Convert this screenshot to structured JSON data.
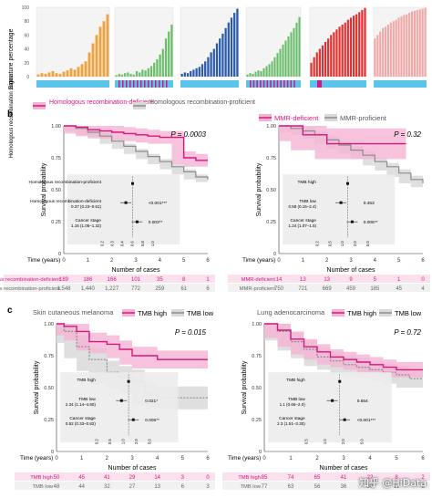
{
  "colors": {
    "pink": "#d6177f",
    "pink_band": "#f4b3d3",
    "gray": "#8c8c8c",
    "gray_band": "#d9d9d9",
    "cyan": "#5bc4e8",
    "bar_orange": "#f3a13a",
    "bar_green": "#6bbd6b",
    "bar_blue": "#2a5aa8",
    "bar_red": "#e0302f",
    "bar_pink": "#f2a5a5"
  },
  "panel_a": {
    "ylabel": "Signature percentage",
    "status_label": "Homologous recombination status",
    "ticks": [
      "100",
      "80",
      "60",
      "40",
      "20",
      "0"
    ]
  },
  "panel_b": {
    "label": "b",
    "left": {
      "legend": [
        "Homologous recombination-deficient",
        "Homologous recombination-proficient"
      ],
      "p_value": "P = 0.0003",
      "ylabel": "Survival probability",
      "xlabel": "Time (years)",
      "yticks": [
        "1.00",
        "0.75",
        "0.50",
        "0.25",
        "0"
      ],
      "xticks": [
        "0",
        "1",
        "2",
        "3",
        "4",
        "5",
        "6"
      ],
      "forest": [
        {
          "label": "Homologous recombination-proficient",
          "hr": "",
          "p": ""
        },
        {
          "label": "Homologous recombination-deficient",
          "hr": "0.37 (0.23–0.61)",
          "p": "<0.001***"
        },
        {
          "label": "Cancer stage",
          "hr": "1.16 (1.06–1.32)",
          "p": "0.003**"
        }
      ],
      "forest_ticks": [
        "0.2",
        "0.3",
        "0.4",
        "0.6",
        "0.8",
        "1.0"
      ],
      "cases_title": "Number of cases",
      "cases": [
        {
          "group": "Homologous recombination-deficient",
          "values": [
            "189",
            "186",
            "166",
            "101",
            "35",
            "8",
            "1"
          ]
        },
        {
          "group": "Homologous recombination-proficient",
          "values": [
            "1,548",
            "1,440",
            "1,227",
            "772",
            "259",
            "61",
            "6"
          ]
        }
      ]
    },
    "right": {
      "legend": [
        "MMR-deficient",
        "MMR-proficient"
      ],
      "p_value": "P = 0.32",
      "ylabel": "Survival probability",
      "xlabel": "Time (years)",
      "yticks": [
        "1.00",
        "0.75",
        "0.50",
        "0.25",
        "0"
      ],
      "xticks": [
        "0",
        "1",
        "2",
        "3",
        "4",
        "5",
        "6"
      ],
      "forest": [
        {
          "label": "TMB high",
          "hr": "",
          "p": ""
        },
        {
          "label": "TMB low",
          "hr": "0.58 (0.15–2.4)",
          "p": "0.453"
        },
        {
          "label": "Cancer stage",
          "hr": "1.24 (1.07–1.5)",
          "p": "0.006**"
        }
      ],
      "forest_ticks": [
        "0.2",
        "0.5",
        "1.0",
        "2.0",
        "5.0"
      ],
      "cases_title": "Number of cases",
      "cases": [
        {
          "group": "MMR-deficient",
          "values": [
            "14",
            "13",
            "13",
            "9",
            "5",
            "1",
            "0"
          ]
        },
        {
          "group": "MMR-proficient",
          "values": [
            "750",
            "721",
            "669",
            "459",
            "185",
            "45",
            "4"
          ]
        }
      ]
    }
  },
  "panel_c": {
    "label": "c",
    "left": {
      "title": "Skin cutaneous melanoma",
      "legend": [
        "TMB high",
        "TMB low"
      ],
      "p_value": "P = 0.015",
      "ylabel": "Survival probability",
      "xlabel": "Time (years)",
      "yticks": [
        "1.00",
        "0.75",
        "0.50",
        "0.25",
        "0"
      ],
      "xticks": [
        "0",
        "1",
        "2",
        "3",
        "4",
        "5",
        "6"
      ],
      "forest": [
        {
          "label": "TMB high",
          "hr": "",
          "p": ""
        },
        {
          "label": "TMB low",
          "hr": "2.34 (1.14–4.80)",
          "p": "0.021*"
        },
        {
          "label": "Cancer stage",
          "hr": "0.52 (0.33–0.82)",
          "p": "0.005**"
        }
      ],
      "forest_ticks": [
        "0.2",
        "0.5",
        "1.0",
        "2.0",
        "5.0"
      ],
      "cases_title": "Number of cases",
      "cases": [
        {
          "group": "TMB high",
          "values": [
            "50",
            "45",
            "41",
            "29",
            "14",
            "3",
            "0"
          ]
        },
        {
          "group": "TMB low",
          "values": [
            "48",
            "44",
            "32",
            "27",
            "13",
            "6",
            "3"
          ]
        }
      ]
    },
    "right": {
      "title": "Lung adenocarcinoma",
      "legend": [
        "TMB high",
        "TMB low"
      ],
      "p_value": "P = 0.72",
      "ylabel": "Survival probability",
      "xlabel": "Time (years)",
      "yticks": [
        "1.00",
        "0.75",
        "0.50",
        "0.25",
        "0"
      ],
      "xticks": [
        "0",
        "1",
        "2",
        "3",
        "4",
        "5",
        "6"
      ],
      "forest": [
        {
          "label": "TMB high",
          "hr": "",
          "p": ""
        },
        {
          "label": "TMB low",
          "hr": "1.1 (0.66–2.0)",
          "p": "0.654"
        },
        {
          "label": "Cancer stage",
          "hr": "2.3 (1.51–3.30)",
          "p": "<0.001***"
        }
      ],
      "forest_ticks": [
        "0.5",
        "1.0",
        "2.0",
        "5.0"
      ],
      "cases_title": "Number of cases",
      "cases": [
        {
          "group": "TMB high",
          "values": [
            "85",
            "74",
            "65",
            "41",
            "22",
            "8",
            "2"
          ]
        },
        {
          "group": "TMB low",
          "values": [
            "77",
            "63",
            "56",
            "36",
            "30",
            "11",
            "2"
          ]
        }
      ]
    }
  },
  "watermark": "知乎 @HiData",
  "chart_data": [
    {
      "type": "bar",
      "title": "",
      "ylabel": "Signature percentage",
      "ylim": [
        0,
        100
      ],
      "groups": [
        {
          "color": "orange",
          "values": [
            3,
            5,
            4,
            6,
            8,
            5,
            4,
            7,
            9,
            12,
            10,
            14,
            18,
            22,
            35,
            48,
            60,
            72,
            80,
            90
          ]
        },
        {
          "color": "green",
          "values": [
            2,
            4,
            3,
            5,
            6,
            4,
            3,
            8,
            6,
            10,
            9,
            12,
            15,
            20,
            25,
            32,
            40,
            55,
            65,
            75
          ]
        },
        {
          "color": "blue",
          "values": [
            4,
            6,
            5,
            8,
            10,
            12,
            14,
            18,
            22,
            28,
            35,
            40,
            48,
            55,
            62,
            70,
            78,
            85,
            92,
            98
          ]
        },
        {
          "color": "green2",
          "values": [
            3,
            5,
            4,
            7,
            9,
            8,
            12,
            15,
            18,
            22,
            28,
            34,
            40,
            46,
            52,
            58,
            64,
            70,
            78,
            86
          ]
        },
        {
          "color": "red",
          "values": [
            20,
            28,
            35,
            40,
            45,
            50,
            55,
            60,
            64,
            68,
            72,
            75,
            78,
            82,
            85,
            88,
            90,
            93,
            96,
            99
          ]
        },
        {
          "color": "salmon",
          "values": [
            55,
            60,
            65,
            70,
            72,
            75,
            78,
            80,
            82,
            85,
            87,
            89,
            90,
            92,
            94,
            95,
            96,
            97,
            98,
            99
          ]
        }
      ]
    },
    {
      "type": "line",
      "title": "",
      "xlabel": "Time (years)",
      "ylabel": "Survival probability",
      "xlim": [
        0,
        6
      ],
      "ylim": [
        0,
        1
      ],
      "series": [
        {
          "name": "Homologous recombination-deficient",
          "x": [
            0,
            0.5,
            1,
            1.5,
            2,
            2.5,
            3,
            3.5,
            4,
            4.5,
            5,
            5.5,
            6
          ],
          "y": [
            1.0,
            0.99,
            0.97,
            0.96,
            0.95,
            0.94,
            0.93,
            0.92,
            0.91,
            0.91,
            0.75,
            0.73,
            0.73
          ]
        },
        {
          "name": "Homologous recombination-proficient",
          "x": [
            0,
            0.5,
            1,
            1.5,
            2,
            2.5,
            3,
            3.5,
            4,
            4.5,
            5,
            5.5,
            6
          ],
          "y": [
            1.0,
            0.98,
            0.95,
            0.92,
            0.88,
            0.84,
            0.8,
            0.76,
            0.72,
            0.68,
            0.64,
            0.6,
            0.58
          ]
        }
      ]
    },
    {
      "type": "line",
      "title": "",
      "xlabel": "Time (years)",
      "ylabel": "Survival probability",
      "xlim": [
        0,
        6
      ],
      "ylim": [
        0,
        1
      ],
      "series": [
        {
          "name": "MMR-deficient",
          "x": [
            0,
            0.5,
            1,
            1.5,
            2,
            3,
            4,
            5,
            5.3
          ],
          "y": [
            1.0,
            1.0,
            0.93,
            0.93,
            0.86,
            0.86,
            0.86,
            0.86,
            0.86
          ]
        },
        {
          "name": "MMR-proficient",
          "x": [
            0,
            0.5,
            1,
            1.5,
            2,
            2.5,
            3,
            3.5,
            4,
            4.5,
            5,
            5.5,
            6
          ],
          "y": [
            1.0,
            0.98,
            0.96,
            0.93,
            0.89,
            0.85,
            0.81,
            0.77,
            0.72,
            0.68,
            0.63,
            0.58,
            0.55
          ]
        }
      ]
    },
    {
      "type": "line",
      "title": "Skin cutaneous melanoma",
      "xlabel": "Time (years)",
      "ylabel": "Survival probability",
      "xlim": [
        0,
        6
      ],
      "ylim": [
        0,
        1
      ],
      "series": [
        {
          "name": "TMB high",
          "x": [
            0,
            0.3,
            0.8,
            1.3,
            2,
            2.5,
            3,
            4,
            5,
            6
          ],
          "y": [
            1.0,
            0.98,
            0.94,
            0.86,
            0.84,
            0.8,
            0.75,
            0.72,
            0.72,
            0.72
          ]
        },
        {
          "name": "TMB low",
          "x": [
            0,
            0.3,
            0.8,
            1.3,
            2,
            2.5,
            3,
            3.5,
            4,
            5,
            6
          ],
          "y": [
            1.0,
            0.94,
            0.82,
            0.72,
            0.62,
            0.58,
            0.55,
            0.45,
            0.42,
            0.42,
            0.42
          ]
        }
      ]
    },
    {
      "type": "line",
      "title": "Lung adenocarcinoma",
      "xlabel": "Time (years)",
      "ylabel": "Survival probability",
      "xlim": [
        0,
        6
      ],
      "ylim": [
        0,
        1
      ],
      "series": [
        {
          "name": "TMB high",
          "x": [
            0,
            0.5,
            1,
            1.5,
            2,
            2.5,
            3,
            3.5,
            4,
            4.5,
            5,
            5.5,
            6
          ],
          "y": [
            1.0,
            0.95,
            0.88,
            0.82,
            0.78,
            0.74,
            0.72,
            0.7,
            0.68,
            0.66,
            0.64,
            0.64,
            0.64
          ]
        },
        {
          "name": "TMB low",
          "x": [
            0,
            0.5,
            1,
            1.5,
            2,
            2.5,
            3,
            3.5,
            4,
            4.5,
            5,
            5.5,
            6
          ],
          "y": [
            1.0,
            0.94,
            0.86,
            0.8,
            0.74,
            0.71,
            0.68,
            0.66,
            0.64,
            0.62,
            0.6,
            0.57,
            0.57
          ]
        }
      ]
    }
  ]
}
